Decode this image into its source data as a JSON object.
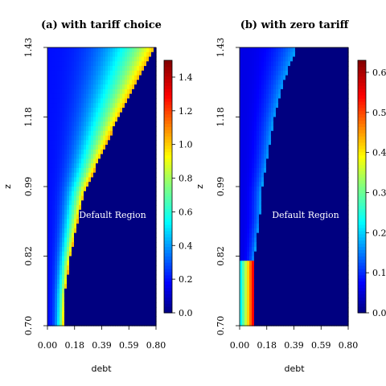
{
  "chart_data": [
    {
      "type": "heatmap",
      "title": "(a) with tariff choice",
      "xlabel": "debt",
      "ylabel": "z",
      "x_ticks": [
        "0.00",
        "0.18",
        "0.39",
        "0.59",
        "0.80"
      ],
      "y_ticks": [
        "0.70",
        "0.82",
        "0.99",
        "1.18",
        "1.43"
      ],
      "xlim": [
        0.0,
        0.8
      ],
      "ylim": [
        0.7,
        1.43
      ],
      "log_y": true,
      "annotation": "Default Region",
      "colorbar": {
        "range": [
          0.0,
          1.5
        ],
        "ticks": [
          "0.0",
          "0.2",
          "0.4",
          "0.6",
          "0.8",
          "1.0",
          "1.2",
          "1.4"
        ]
      },
      "default_boundary": [
        {
          "z": 0.7,
          "debt": 0.12
        },
        {
          "z": 0.76,
          "debt": 0.13
        },
        {
          "z": 0.82,
          "debt": 0.16
        },
        {
          "z": 0.88,
          "debt": 0.2
        },
        {
          "z": 0.94,
          "debt": 0.24
        },
        {
          "z": 0.99,
          "debt": 0.28
        },
        {
          "z": 1.06,
          "debt": 0.37
        },
        {
          "z": 1.18,
          "debt": 0.51
        },
        {
          "z": 1.3,
          "debt": 0.65
        },
        {
          "z": 1.43,
          "debt": 0.8
        }
      ],
      "value_at_boundary": 1.05,
      "value_min": 0.2
    },
    {
      "type": "heatmap",
      "title": "(b) with zero tariff",
      "xlabel": "debt",
      "ylabel": "z",
      "x_ticks": [
        "0.00",
        "0.18",
        "0.39",
        "0.59",
        "0.80"
      ],
      "y_ticks": [
        "0.70",
        "0.82",
        "0.99",
        "1.18",
        "1.43"
      ],
      "xlim": [
        0.0,
        0.8
      ],
      "ylim": [
        0.7,
        1.43
      ],
      "log_y": true,
      "annotation": "Default Region",
      "colorbar": {
        "range": [
          0.0,
          0.63
        ],
        "ticks": [
          "0.0",
          "0.1",
          "0.2",
          "0.3",
          "0.4",
          "0.5",
          "0.6"
        ]
      },
      "default_boundary": [
        {
          "z": 0.7,
          "debt": 0.1
        },
        {
          "z": 0.76,
          "debt": 0.1
        },
        {
          "z": 0.82,
          "debt": 0.1
        },
        {
          "z": 0.86,
          "debt": 0.12
        },
        {
          "z": 0.92,
          "debt": 0.15
        },
        {
          "z": 0.99,
          "debt": 0.16
        },
        {
          "z": 1.06,
          "debt": 0.2
        },
        {
          "z": 1.18,
          "debt": 0.25
        },
        {
          "z": 1.3,
          "debt": 0.32
        },
        {
          "z": 1.43,
          "debt": 0.42
        }
      ],
      "value_at_boundary": 0.17,
      "value_min": 0.06,
      "high_band": {
        "z_max": 0.83,
        "debt_max": 0.1,
        "value": 0.55
      }
    }
  ]
}
